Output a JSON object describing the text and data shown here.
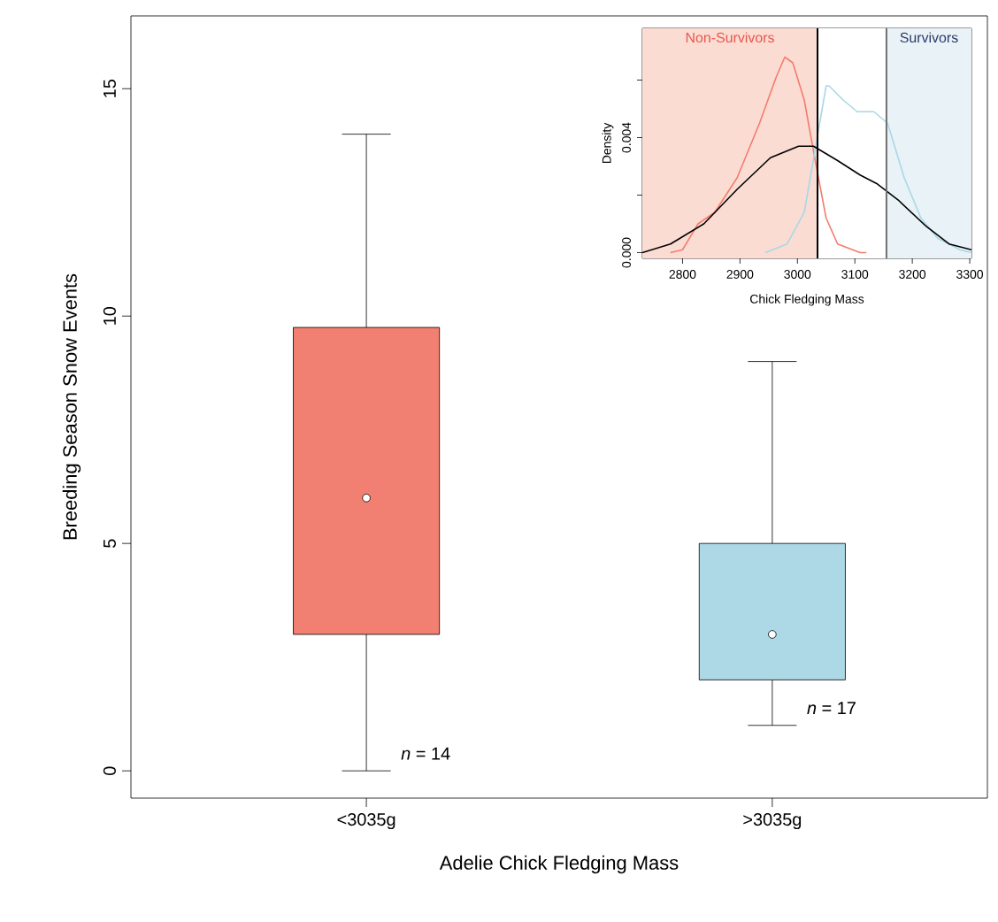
{
  "chart_data": [
    {
      "type": "box",
      "xlabel": "Adelie Chick Fledging Mass",
      "ylabel": "Breeding Season Snow Events",
      "categories": [
        "<3035g",
        ">3035g"
      ],
      "boxes": [
        {
          "low": 0,
          "q1": 3,
          "median": 6,
          "q3": 9.75,
          "high": 14
        },
        {
          "low": 1,
          "q1": 2,
          "median": 3,
          "q3": 5,
          "high": 9
        }
      ],
      "colors": [
        "#f28072",
        "#add8e6"
      ],
      "ylim": [
        -0.6,
        16.6
      ],
      "yticks": [
        0,
        5,
        10,
        15
      ],
      "annotations": [
        "*n* = 14",
        "*n* = 17"
      ]
    },
    {
      "type": "line",
      "xlabel": "Chick Fledging Mass",
      "ylabel": "Density",
      "series": [
        {
          "color": "#f47c6e",
          "x": [
            2779,
            2800,
            2827,
            2856,
            2895,
            2934,
            2963,
            2978,
            2992,
            3012,
            3031,
            3050,
            3070,
            3109,
            3120
          ],
          "values": [
            0,
            0.0001,
            0.001,
            0.0014,
            0.0026,
            0.0045,
            0.0061,
            0.0068,
            0.0066,
            0.0053,
            0.0032,
            0.0012,
            0.0003,
            0,
            0
          ]
        },
        {
          "color": "#a8d8e6",
          "x": [
            2944,
            2982,
            3012,
            3031,
            3050,
            3055,
            3080,
            3104,
            3133,
            3157,
            3186,
            3215,
            3244,
            3283,
            3303
          ],
          "values": [
            0,
            0.0003,
            0.0014,
            0.0036,
            0.0058,
            0.0058,
            0.0053,
            0.0049,
            0.0049,
            0.0045,
            0.0026,
            0.0012,
            0.0005,
            0.0001,
            0
          ]
        },
        {
          "color": "#000000",
          "x": [
            2730,
            2779,
            2837,
            2895,
            2953,
            3002,
            3028,
            3070,
            3109,
            3138,
            3177,
            3225,
            3264,
            3303
          ],
          "values": [
            0,
            0.0003,
            0.001,
            0.0022,
            0.0033,
            0.0037,
            0.0037,
            0.0032,
            0.0027,
            0.0024,
            0.0018,
            0.0009,
            0.0003,
            0.0001
          ]
        }
      ],
      "xlim": [
        2730,
        3303
      ],
      "ylim": [
        -0.0002,
        0.0078
      ],
      "xticks": [
        2800,
        2900,
        3000,
        3100,
        3200,
        3300
      ],
      "yticks": [
        {
          "value": 0,
          "label": "0.000"
        },
        {
          "value": 0.002,
          "label": null
        },
        {
          "value": 0.004,
          "label": "0.004"
        },
        {
          "value": 0.006,
          "label": null
        }
      ],
      "bands": [
        {
          "axis": "x",
          "from": 2730,
          "to": 3035,
          "label": "Non-Survivors",
          "color": "#fadcd3"
        },
        {
          "axis": "x",
          "from": 3155,
          "to": 3303,
          "label": "Survivors",
          "color": "#e9f2f6"
        }
      ],
      "ref_lines": [
        {
          "axis": "x",
          "value": 3035,
          "color": "#000000"
        },
        {
          "axis": "x",
          "value": 3155,
          "color": "#707070"
        }
      ]
    }
  ]
}
